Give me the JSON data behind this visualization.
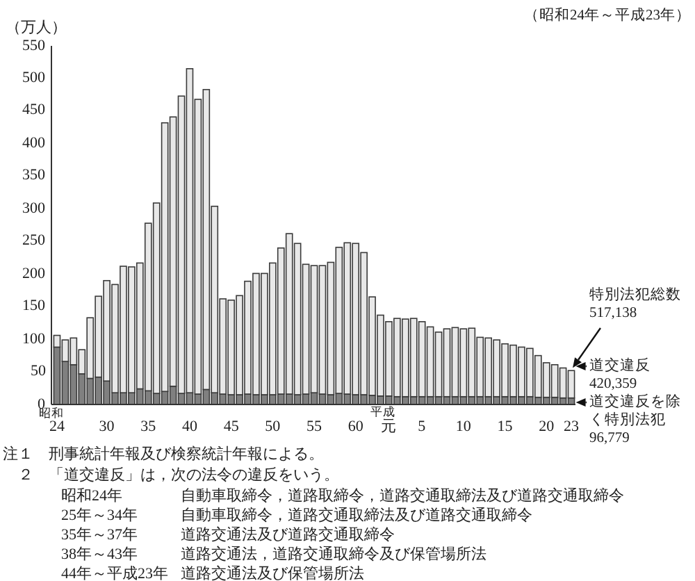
{
  "chart_data": {
    "type": "bar",
    "stacked": true,
    "subtitle": "（昭和24年～平成23年）",
    "ylabel": "（万人）",
    "legend": false,
    "grid": false,
    "ylim": [
      0,
      550
    ],
    "yticks": [
      0,
      50,
      100,
      150,
      200,
      250,
      300,
      350,
      400,
      450,
      500,
      550
    ],
    "categories": [
      "24",
      null,
      null,
      null,
      null,
      null,
      "30",
      null,
      null,
      null,
      null,
      "35",
      null,
      null,
      null,
      null,
      "40",
      null,
      null,
      null,
      null,
      "45",
      null,
      null,
      null,
      null,
      "50",
      null,
      null,
      null,
      null,
      "55",
      null,
      null,
      null,
      null,
      "60",
      null,
      null,
      null,
      "元",
      null,
      null,
      null,
      "5",
      null,
      null,
      null,
      null,
      "10",
      null,
      null,
      null,
      null,
      "15",
      null,
      null,
      null,
      null,
      "20",
      null,
      null,
      "23"
    ],
    "series": [
      {
        "name": "道交違反を除く特別法犯",
        "color": "#808080",
        "values": [
          88,
          66,
          61,
          47,
          40,
          42,
          36,
          18,
          18,
          18,
          24,
          21,
          17,
          20,
          28,
          17,
          18,
          16,
          23,
          18,
          16,
          15,
          15,
          16,
          15,
          15,
          15,
          16,
          16,
          15,
          16,
          18,
          16,
          15,
          17,
          16,
          15,
          15,
          14,
          13,
          13,
          12,
          12,
          12,
          12,
          12,
          12,
          12,
          12,
          12,
          12,
          12,
          12,
          12,
          12,
          12,
          12,
          12,
          11,
          11,
          11,
          10,
          10
        ]
      },
      {
        "name": "道交違反",
        "color": "#e8e8e8",
        "values": [
          18,
          33,
          41,
          37,
          93,
          124,
          154,
          166,
          194,
          193,
          193,
          257,
          292,
          412,
          413,
          456,
          497,
          452,
          460,
          286,
          146,
          145,
          152,
          173,
          186,
          186,
          202,
          224,
          246,
          232,
          199,
          195,
          197,
          203,
          224,
          232,
          232,
          218,
          151,
          124,
          114,
          120,
          119,
          120,
          115,
          107,
          99,
          104,
          106,
          104,
          105,
          91,
          90,
          87,
          81,
          79,
          76,
          74,
          64,
          53,
          50,
          46,
          42
        ]
      }
    ],
    "annotations": [
      "特別法犯総数",
      "517,138",
      "420,359",
      "96,779",
      "昭和",
      "平成",
      "注１　刑事統計年報及び検察統計年報による。",
      "２　「道交違反」は，次の法令の違反をいう。",
      "昭和24年",
      "自動車取締令，道路取締令，道路交通取締法及び道路交通取締令",
      "25年～34年",
      "自動車取締令，道路交通取締法及び道路交通取締令",
      "35年～37年",
      "道路交通法及び道路交通取締令",
      "38年～43年",
      "道路交通法，道路交通取締令及び保管場所法",
      "44年～平成23年",
      "道路交通法及び保管場所法"
    ]
  }
}
